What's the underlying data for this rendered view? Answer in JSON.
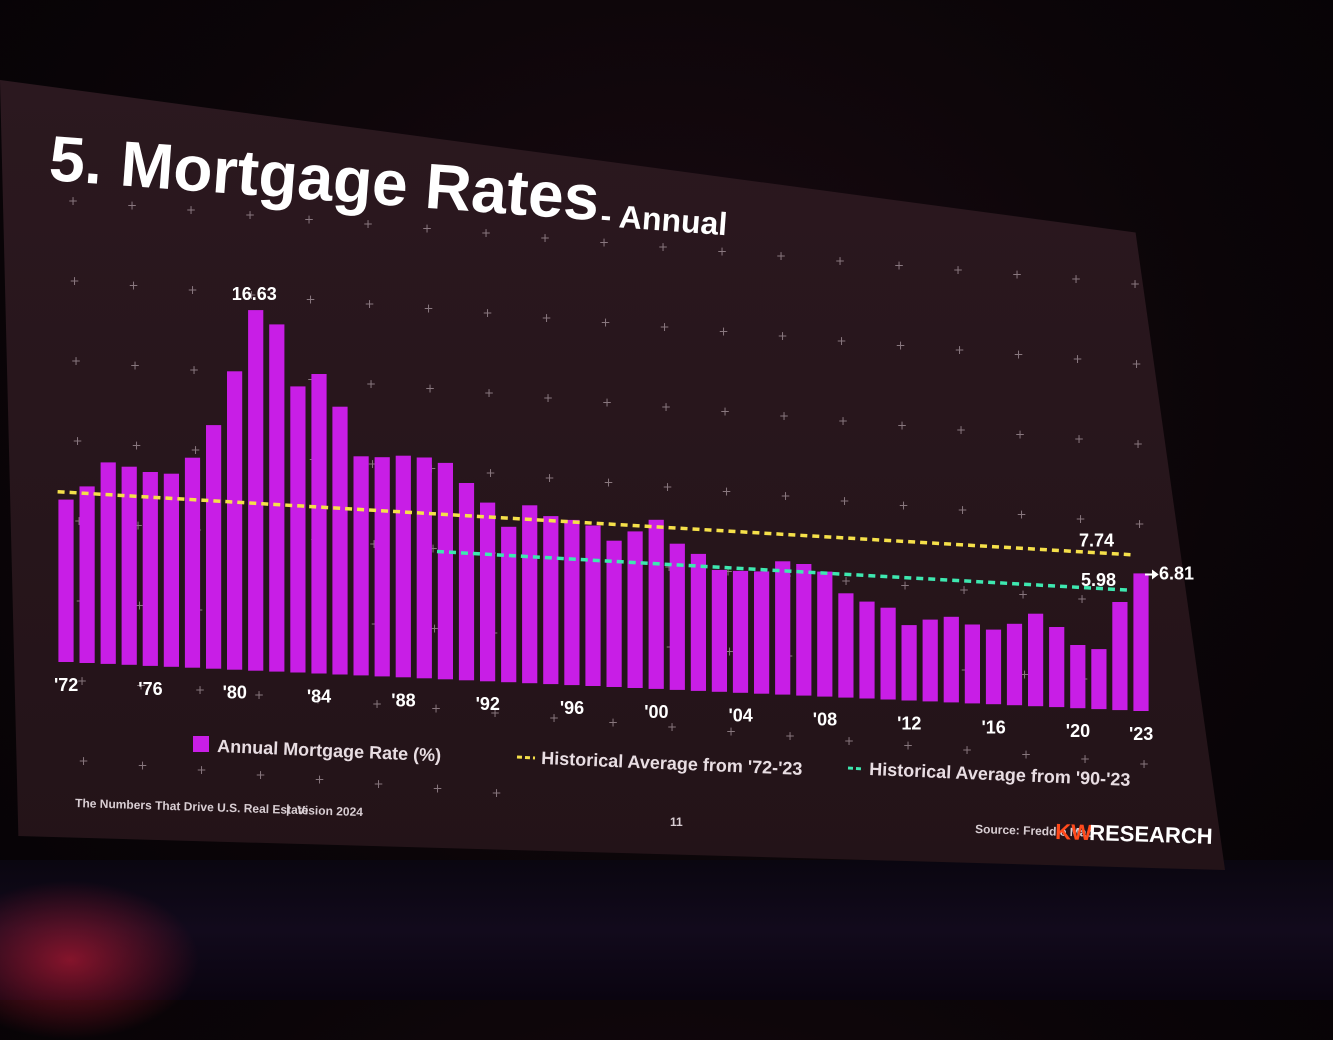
{
  "slide": {
    "title": "5. Mortgage Rates",
    "subtitle": "- Annual",
    "footer_left": "The Numbers That Drive U.S. Real Estate",
    "footer_sep": "|",
    "footer_vision": "Vision 2024",
    "page_number": "11",
    "source": "Source: Freddie Mac",
    "brand_kw": "KW",
    "brand_research": "RESEARCH"
  },
  "colors": {
    "bar": "#c81ee6",
    "avg_72_23": "#f5e04a",
    "avg_90_23": "#3ee8b0",
    "brand": "#ff4a1c"
  },
  "chart_data": {
    "type": "bar",
    "x": [
      1972,
      1973,
      1974,
      1975,
      1976,
      1977,
      1978,
      1979,
      1980,
      1981,
      1982,
      1983,
      1984,
      1985,
      1986,
      1987,
      1988,
      1989,
      1990,
      1991,
      1992,
      1993,
      1994,
      1995,
      1996,
      1997,
      1998,
      1999,
      2000,
      2001,
      2002,
      2003,
      2004,
      2005,
      2006,
      2007,
      2008,
      2009,
      2010,
      2011,
      2012,
      2013,
      2014,
      2015,
      2016,
      2017,
      2018,
      2019,
      2020,
      2021,
      2022,
      2023
    ],
    "values": [
      7.38,
      8.04,
      9.19,
      9.05,
      8.87,
      8.85,
      9.64,
      11.2,
      13.74,
      16.63,
      16.04,
      13.24,
      13.88,
      12.43,
      10.19,
      10.21,
      10.34,
      10.32,
      10.13,
      9.25,
      8.39,
      7.31,
      8.38,
      7.93,
      7.81,
      7.6,
      6.94,
      7.44,
      8.05,
      6.97,
      6.54,
      5.83,
      5.84,
      5.87,
      6.41,
      6.34,
      6.03,
      5.04,
      4.69,
      4.45,
      3.66,
      3.98,
      4.17,
      3.85,
      3.65,
      3.99,
      4.54,
      3.94,
      3.11,
      2.96,
      5.34,
      6.81
    ],
    "tick_labels": [
      "'72",
      "'76",
      "'80",
      "'84",
      "'88",
      "'92",
      "'96",
      "'00",
      "'04",
      "'08",
      "'12",
      "'16",
      "'20",
      "'23"
    ],
    "tick_years": [
      1972,
      1976,
      1980,
      1984,
      1988,
      1992,
      1996,
      2000,
      2004,
      2008,
      2012,
      2016,
      2020,
      2023
    ],
    "peak_label": "16.63",
    "last_label": "6.81",
    "series": [
      {
        "name": "Annual Mortgage Rate (%)",
        "type": "bar"
      },
      {
        "name": "Historical Average from '72-'23",
        "type": "line",
        "value": 7.74,
        "from": 1972,
        "to": 2023,
        "value_label": "7.74"
      },
      {
        "name": "Historical Average from '90-'23",
        "type": "line",
        "value": 5.98,
        "from": 1990,
        "to": 2023,
        "value_label": "5.98"
      }
    ],
    "ylim": [
      0,
      18
    ],
    "grid": false,
    "legend_position": "bottom"
  }
}
